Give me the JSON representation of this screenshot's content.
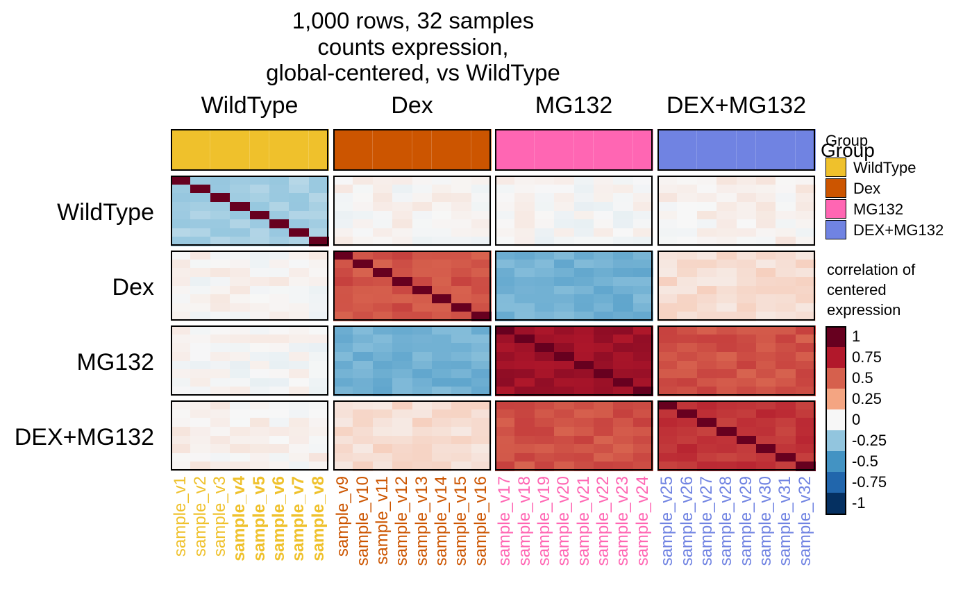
{
  "title": {
    "lines": [
      "1,000 rows, 32 samples",
      "counts expression,",
      "global-centered, vs WildType"
    ]
  },
  "groups": [
    {
      "name": "WildType",
      "color": "#EFC12C"
    },
    {
      "name": "Dex",
      "color": "#CC5500"
    },
    {
      "name": "MG132",
      "color": "#FF66B3"
    },
    {
      "name": "DEX+MG132",
      "color": "#7083E2"
    }
  ],
  "samples": [
    {
      "label": "sample_v1",
      "group": 0,
      "bold": false
    },
    {
      "label": "sample_v2",
      "group": 0,
      "bold": false
    },
    {
      "label": "sample_v3",
      "group": 0,
      "bold": false
    },
    {
      "label": "sample_v4",
      "group": 0,
      "bold": true
    },
    {
      "label": "sample_v5",
      "group": 0,
      "bold": true
    },
    {
      "label": "sample_v6",
      "group": 0,
      "bold": true
    },
    {
      "label": "sample_v7",
      "group": 0,
      "bold": true
    },
    {
      "label": "sample_v8",
      "group": 0,
      "bold": true
    },
    {
      "label": "sample_v9",
      "group": 1,
      "bold": false
    },
    {
      "label": "sample_v10",
      "group": 1,
      "bold": false
    },
    {
      "label": "sample_v11",
      "group": 1,
      "bold": false
    },
    {
      "label": "sample_v12",
      "group": 1,
      "bold": false
    },
    {
      "label": "sample_v13",
      "group": 1,
      "bold": false
    },
    {
      "label": "sample_v14",
      "group": 1,
      "bold": false
    },
    {
      "label": "sample_v15",
      "group": 1,
      "bold": false
    },
    {
      "label": "sample_v16",
      "group": 1,
      "bold": false
    },
    {
      "label": "sample_v17",
      "group": 2,
      "bold": false
    },
    {
      "label": "sample_v18",
      "group": 2,
      "bold": false
    },
    {
      "label": "sample_v19",
      "group": 2,
      "bold": false
    },
    {
      "label": "sample_v20",
      "group": 2,
      "bold": false
    },
    {
      "label": "sample_v21",
      "group": 2,
      "bold": false
    },
    {
      "label": "sample_v22",
      "group": 2,
      "bold": false
    },
    {
      "label": "sample_v23",
      "group": 2,
      "bold": false
    },
    {
      "label": "sample_v24",
      "group": 2,
      "bold": false
    },
    {
      "label": "sample_v25",
      "group": 3,
      "bold": false
    },
    {
      "label": "sample_v26",
      "group": 3,
      "bold": false
    },
    {
      "label": "sample_v27",
      "group": 3,
      "bold": false
    },
    {
      "label": "sample_v28",
      "group": 3,
      "bold": false
    },
    {
      "label": "sample_v29",
      "group": 3,
      "bold": false
    },
    {
      "label": "sample_v30",
      "group": 3,
      "bold": false
    },
    {
      "label": "sample_v31",
      "group": 3,
      "bold": false
    },
    {
      "label": "sample_v32",
      "group": 3,
      "bold": false
    }
  ],
  "legend_group": {
    "title": "Group",
    "title_echo": "Group",
    "entries": [
      "WildType",
      "Dex",
      "MG132",
      "DEX+MG132"
    ]
  },
  "legend_color": {
    "title_lines": [
      "correlation of",
      "centered",
      "expression"
    ],
    "labels": [
      "1",
      "0.75",
      "0.5",
      "0.25",
      "0",
      "-0.25",
      "-0.5",
      "-0.75",
      "-1"
    ],
    "colors": [
      "#67001F",
      "#B2182B",
      "#D6604D",
      "#F4A582",
      "#F7F7F7",
      "#92C5DE",
      "#4393C3",
      "#2166AC",
      "#053061"
    ]
  },
  "chart_data": {
    "type": "heatmap",
    "title": "1,000 rows, 32 samples\ncounts expression,\nglobal-centered, vs WildType",
    "row_groups": [
      "WildType",
      "Dex",
      "MG132",
      "DEX+MG132"
    ],
    "column_groups": [
      "WildType",
      "Dex",
      "MG132",
      "DEX+MG132"
    ],
    "value_range": [
      -1,
      1
    ],
    "diagonal_value": 1,
    "block_mean_correlation": [
      [
        -0.2,
        0.01,
        0.0,
        0.02
      ],
      [
        0.01,
        0.55,
        -0.35,
        0.08
      ],
      [
        0.0,
        -0.35,
        0.82,
        0.55
      ],
      [
        0.02,
        0.08,
        0.55,
        0.65
      ]
    ]
  }
}
